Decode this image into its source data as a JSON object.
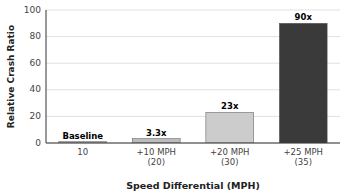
{
  "chart_data": {
    "type": "bar",
    "categories": [
      "10",
      "+10 MPH\n(20)",
      "+20 MPH\n(30)",
      "+25 MPH\n(35)"
    ],
    "values": [
      1,
      3.3,
      23,
      90
    ],
    "value_labels": [
      "Baseline",
      "3.3x",
      "23x",
      "90x"
    ],
    "data_labels": true,
    "colors": [
      "#bbbbbb",
      "#bbbbbb",
      "#cccccc",
      "#3a3a3a"
    ],
    "xlabel": "Speed Differential (MPH)",
    "ylabel": "Relative Crash Ratio",
    "ylim": [
      0,
      100
    ],
    "yticks": [
      0,
      20,
      40,
      60,
      80,
      100
    ],
    "grid": true
  }
}
